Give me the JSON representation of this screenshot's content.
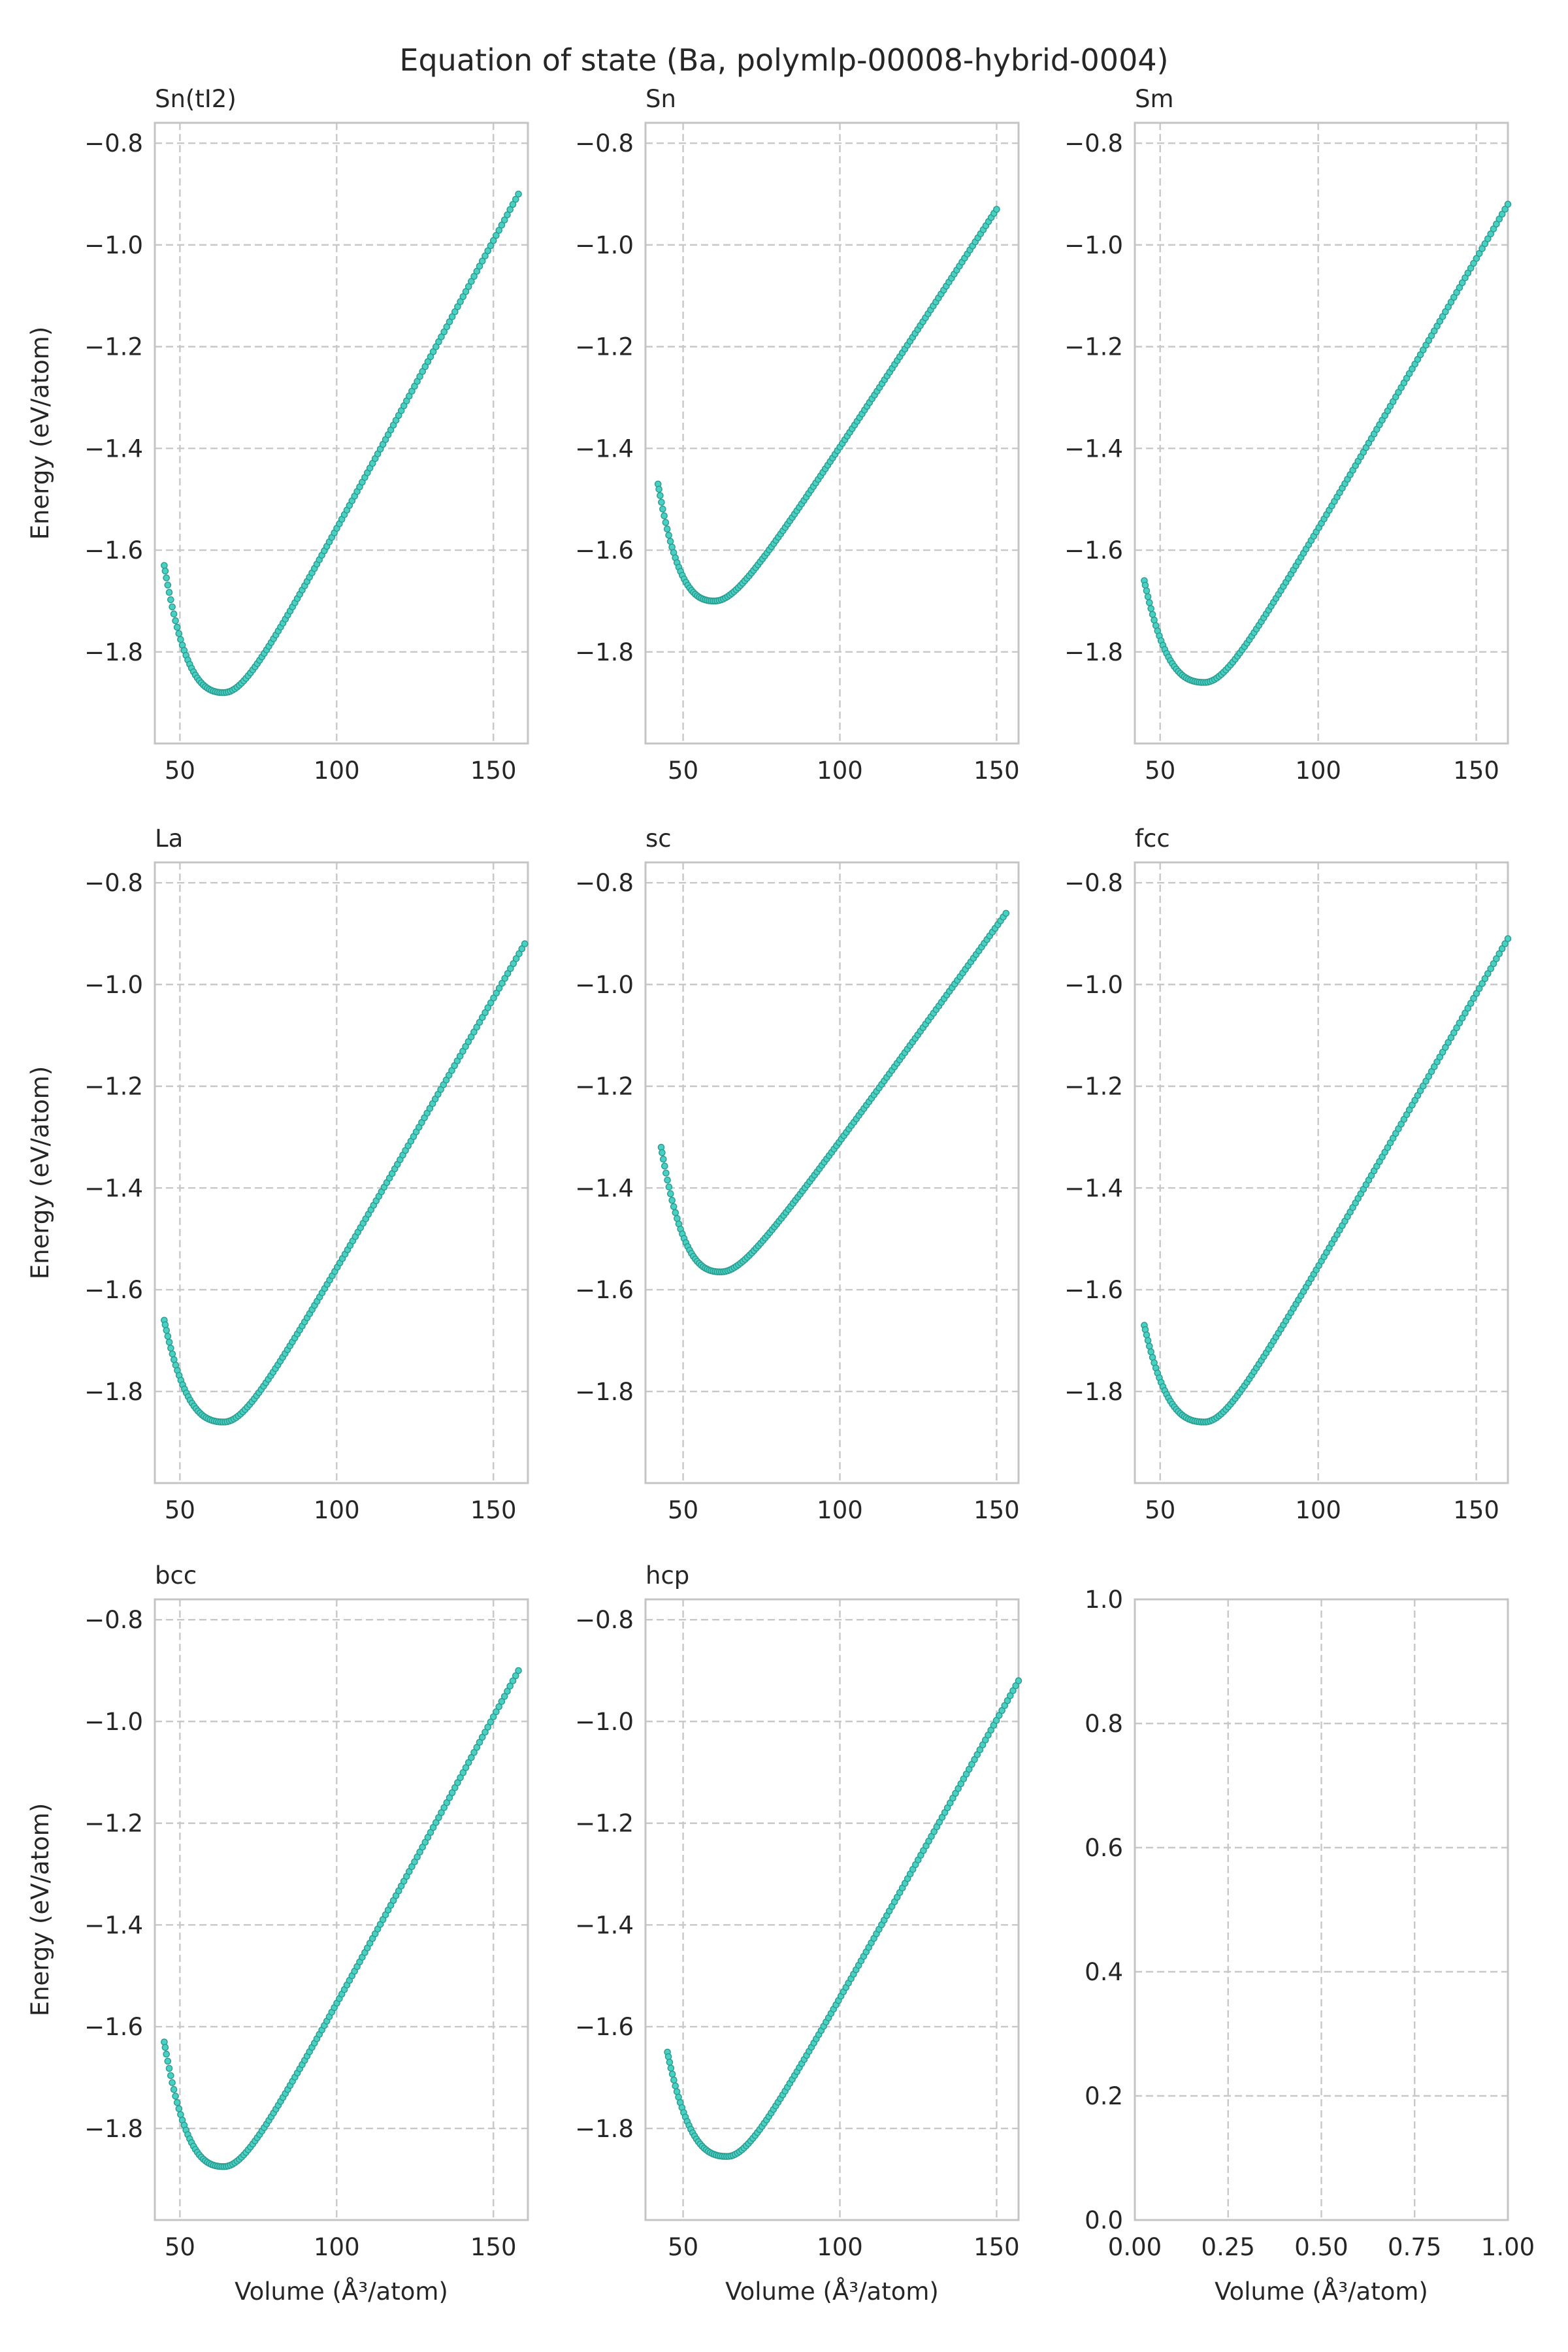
{
  "figure": {
    "title": "Equation of state (Ba, polymlp-00008-hybrid-0004)",
    "colors": {
      "marker_fill": "#48d1c3",
      "marker_edge": "#2a9a8e",
      "grid": "#c8c8c8",
      "frame": "#c4c4c4",
      "text": "#262626"
    }
  },
  "chart_data": [
    {
      "type": "scatter",
      "title": "Sn(tI2)",
      "xlabel": "",
      "ylabel": "Energy (eV/atom)",
      "xlim": [
        42,
        161
      ],
      "ylim": [
        -1.98,
        -0.76
      ],
      "xticks": [
        "50",
        "100",
        "150"
      ],
      "yticks": [
        "−0.8",
        "−1.0",
        "−1.2",
        "−1.4",
        "−1.6",
        "−1.8"
      ],
      "x_range": [
        45,
        158
      ],
      "v0": 64,
      "e0": -1.88,
      "e_start": -1.63,
      "e_end": -0.9,
      "grid": true
    },
    {
      "type": "scatter",
      "title": "Sn",
      "xlabel": "",
      "ylabel": "",
      "xlim": [
        38,
        157
      ],
      "ylim": [
        -1.98,
        -0.76
      ],
      "xticks": [
        "50",
        "100",
        "150"
      ],
      "yticks": [
        "−0.8",
        "−1.0",
        "−1.2",
        "−1.4",
        "−1.6",
        "−1.8"
      ],
      "x_range": [
        42,
        150
      ],
      "v0": 60,
      "e0": -1.7,
      "e_start": -1.47,
      "e_end": -0.93,
      "grid": true
    },
    {
      "type": "scatter",
      "title": "Sm",
      "xlabel": "",
      "ylabel": "",
      "xlim": [
        42,
        160
      ],
      "ylim": [
        -1.98,
        -0.76
      ],
      "xticks": [
        "50",
        "100",
        "150"
      ],
      "yticks": [
        "−0.8",
        "−1.0",
        "−1.2",
        "−1.4",
        "−1.6",
        "−1.8"
      ],
      "x_range": [
        45,
        160
      ],
      "v0": 64,
      "e0": -1.86,
      "e_start": -1.66,
      "e_end": -0.92,
      "grid": true
    },
    {
      "type": "scatter",
      "title": "La",
      "xlabel": "",
      "ylabel": "Energy (eV/atom)",
      "xlim": [
        42,
        161
      ],
      "ylim": [
        -1.98,
        -0.76
      ],
      "xticks": [
        "50",
        "100",
        "150"
      ],
      "yticks": [
        "−0.8",
        "−1.0",
        "−1.2",
        "−1.4",
        "−1.6",
        "−1.8"
      ],
      "x_range": [
        45,
        160
      ],
      "v0": 64,
      "e0": -1.86,
      "e_start": -1.66,
      "e_end": -0.92,
      "grid": true
    },
    {
      "type": "scatter",
      "title": "sc",
      "xlabel": "",
      "ylabel": "",
      "xlim": [
        38,
        157
      ],
      "ylim": [
        -1.98,
        -0.76
      ],
      "xticks": [
        "50",
        "100",
        "150"
      ],
      "yticks": [
        "−0.8",
        "−1.0",
        "−1.2",
        "−1.4",
        "−1.6",
        "−1.8"
      ],
      "x_range": [
        43,
        153
      ],
      "v0": 62,
      "e0": -1.565,
      "e_start": -1.32,
      "e_end": -0.86,
      "grid": true
    },
    {
      "type": "scatter",
      "title": "fcc",
      "xlabel": "",
      "ylabel": "",
      "xlim": [
        42,
        160
      ],
      "ylim": [
        -1.98,
        -0.76
      ],
      "xticks": [
        "50",
        "100",
        "150"
      ],
      "yticks": [
        "−0.8",
        "−1.0",
        "−1.2",
        "−1.4",
        "−1.6",
        "−1.8"
      ],
      "x_range": [
        45,
        160
      ],
      "v0": 64,
      "e0": -1.86,
      "e_start": -1.67,
      "e_end": -0.91,
      "grid": true
    },
    {
      "type": "scatter",
      "title": "bcc",
      "xlabel": "Volume (Å³/atom)",
      "ylabel": "Energy (eV/atom)",
      "xlim": [
        42,
        161
      ],
      "ylim": [
        -1.98,
        -0.76
      ],
      "xticks": [
        "50",
        "100",
        "150"
      ],
      "yticks": [
        "−0.8",
        "−1.0",
        "−1.2",
        "−1.4",
        "−1.6",
        "−1.8"
      ],
      "x_range": [
        45,
        158
      ],
      "v0": 64,
      "e0": -1.875,
      "e_start": -1.63,
      "e_end": -0.9,
      "grid": true
    },
    {
      "type": "scatter",
      "title": "hcp",
      "xlabel": "Volume (Å³/atom)",
      "ylabel": "",
      "xlim": [
        38,
        157
      ],
      "ylim": [
        -1.98,
        -0.76
      ],
      "xticks": [
        "50",
        "100",
        "150"
      ],
      "yticks": [
        "−0.8",
        "−1.0",
        "−1.2",
        "−1.4",
        "−1.6",
        "−1.8"
      ],
      "x_range": [
        45,
        157
      ],
      "v0": 64,
      "e0": -1.855,
      "e_start": -1.65,
      "e_end": -0.92,
      "grid": true
    },
    {
      "type": "scatter",
      "title": "",
      "xlabel": "Volume (Å³/atom)",
      "ylabel": "",
      "xlim": [
        0,
        1
      ],
      "ylim": [
        0,
        1
      ],
      "xticks": [
        "0.00",
        "0.25",
        "0.50",
        "0.75",
        "1.00"
      ],
      "yticks": [
        "0.0",
        "0.2",
        "0.4",
        "0.6",
        "0.8",
        "1.0"
      ],
      "empty": true,
      "grid": true
    }
  ]
}
